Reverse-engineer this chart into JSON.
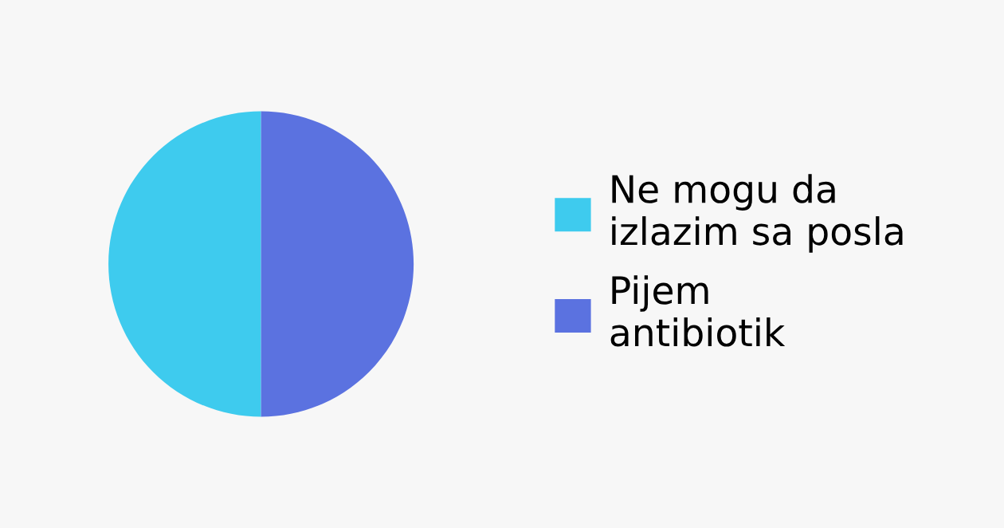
{
  "chart_data": {
    "type": "pie",
    "categories": [
      "Ne mogu da\nizlazim sa posla",
      "Pijem\nantibiotik"
    ],
    "values": [
      50,
      50
    ],
    "colors": [
      "#3ecbee",
      "#5b72e0"
    ],
    "legend": "right"
  }
}
